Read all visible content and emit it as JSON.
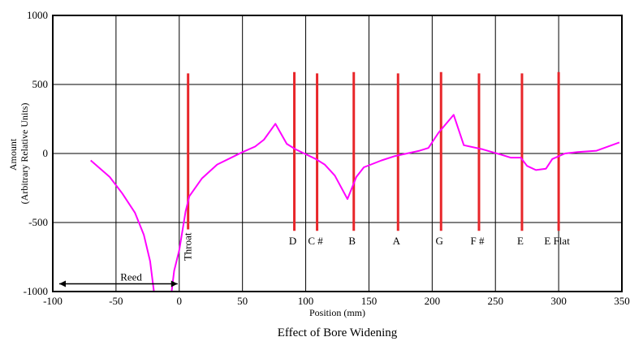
{
  "chart_data": {
    "type": "line",
    "title": "",
    "caption": "Effect of Bore Widening",
    "xlabel": "Position (mm)",
    "ylabel_lines": [
      "Amount",
      "(Arbitrary Relative Units)"
    ],
    "xlim": [
      -100,
      350
    ],
    "ylim": [
      -1000,
      1000
    ],
    "x_ticks": [
      -100,
      -50,
      0,
      50,
      100,
      150,
      200,
      250,
      300,
      350
    ],
    "y_ticks": [
      -1000,
      -500,
      0,
      500,
      1000
    ],
    "grid": true,
    "series": [
      {
        "color": "#ff00ff",
        "points": [
          [
            -70,
            -50
          ],
          [
            -55,
            -170
          ],
          [
            -45,
            -290
          ],
          [
            -35,
            -430
          ],
          [
            -28,
            -590
          ],
          [
            -23,
            -780
          ],
          [
            -20,
            -1010
          ]
        ]
      },
      {
        "color": "#ff00ff",
        "points": [
          [
            -6,
            -1000
          ],
          [
            -4,
            -850
          ],
          [
            0,
            -700
          ],
          [
            5,
            -420
          ],
          [
            8,
            -310
          ],
          [
            18,
            -180
          ],
          [
            30,
            -80
          ],
          [
            50,
            10
          ],
          [
            60,
            50
          ],
          [
            67,
            100
          ],
          [
            76,
            215
          ],
          [
            85,
            70
          ],
          [
            92,
            30
          ],
          [
            108,
            -40
          ],
          [
            115,
            -80
          ],
          [
            123,
            -160
          ],
          [
            133,
            -330
          ],
          [
            140,
            -170
          ],
          [
            146,
            -100
          ],
          [
            160,
            -50
          ],
          [
            170,
            -20
          ],
          [
            180,
            0
          ],
          [
            190,
            20
          ],
          [
            197,
            40
          ],
          [
            205,
            150
          ],
          [
            217,
            280
          ],
          [
            225,
            60
          ],
          [
            240,
            30
          ],
          [
            255,
            -10
          ],
          [
            262,
            -30
          ],
          [
            270,
            -30
          ],
          [
            275,
            -90
          ],
          [
            282,
            -120
          ],
          [
            290,
            -110
          ],
          [
            295,
            -40
          ],
          [
            305,
            0
          ],
          [
            315,
            10
          ],
          [
            330,
            20
          ],
          [
            348,
            80
          ]
        ]
      }
    ],
    "markers": {
      "color": "#e8262a",
      "items": [
        {
          "label": "Throat",
          "x": 7,
          "y_top": 580,
          "y_bottom": -550,
          "vertical": true
        },
        {
          "label": "D",
          "x": 91,
          "y_top": 590,
          "y_bottom": -560
        },
        {
          "label": "C #",
          "x": 109,
          "y_top": 580,
          "y_bottom": -560
        },
        {
          "label": "B",
          "x": 138,
          "y_top": 590,
          "y_bottom": -560
        },
        {
          "label": "A",
          "x": 173,
          "y_top": 580,
          "y_bottom": -560
        },
        {
          "label": "G",
          "x": 207,
          "y_top": 590,
          "y_bottom": -560
        },
        {
          "label": "F #",
          "x": 237,
          "y_top": 580,
          "y_bottom": -560
        },
        {
          "label": "E",
          "x": 271,
          "y_top": 580,
          "y_bottom": -560
        },
        {
          "label": "E Flat",
          "x": 300,
          "y_top": 590,
          "y_bottom": -560
        }
      ]
    },
    "annotation": {
      "label": "Reed",
      "x_from": -100,
      "x_to": 0,
      "y": -950
    }
  }
}
